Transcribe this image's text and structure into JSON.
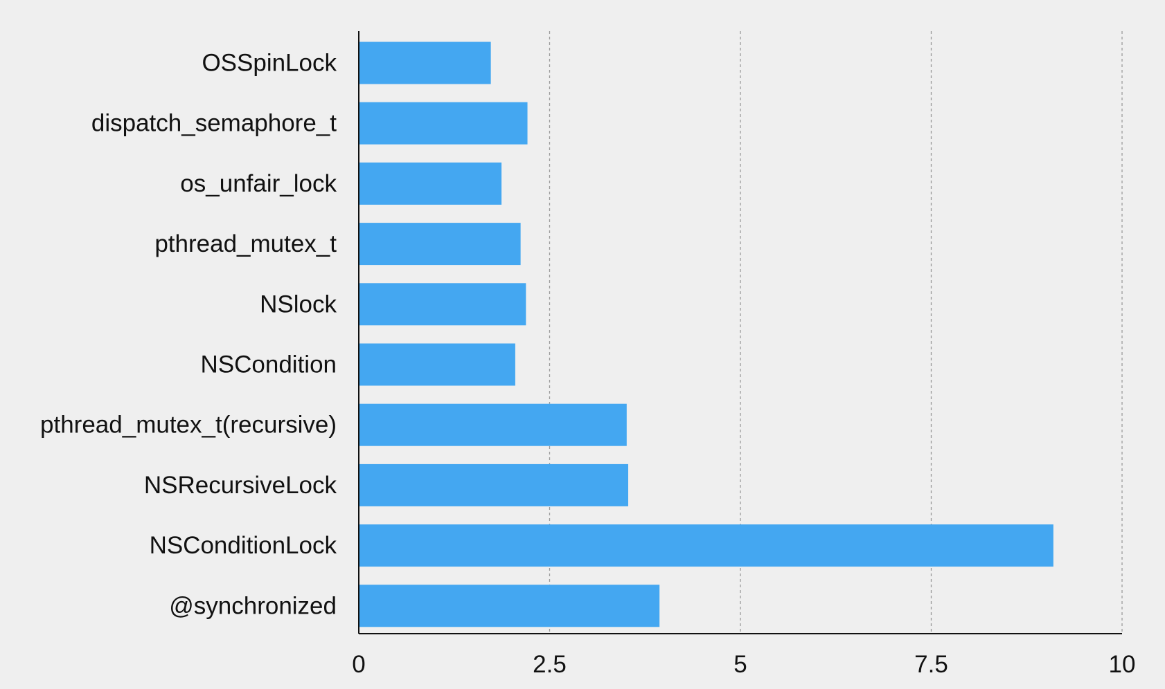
{
  "chart_data": {
    "type": "bar",
    "orientation": "horizontal",
    "categories": [
      "OSSpinLock",
      "dispatch_semaphore_t",
      "os_unfair_lock",
      "pthread_mutex_t",
      "NSlock",
      "NSCondition",
      "pthread_mutex_t(recursive)",
      "NSRecursiveLock",
      "NSConditionLock",
      "@synchronized"
    ],
    "values": [
      1.73,
      2.21,
      1.87,
      2.12,
      2.19,
      2.05,
      3.51,
      3.53,
      9.1,
      3.94
    ],
    "xlim": [
      0,
      10
    ],
    "xticks": [
      0,
      2.5,
      5,
      7.5,
      10
    ],
    "xtick_labels": [
      "0",
      "2.5",
      "5",
      "7.5",
      "10"
    ],
    "title": "",
    "xlabel": "",
    "ylabel": "",
    "grid": "vertical-dashed",
    "legend": "none"
  },
  "colors": {
    "bar": "#44a7f1",
    "background": "#efefef",
    "text": "#111111",
    "grid": "#9a9a9a"
  }
}
